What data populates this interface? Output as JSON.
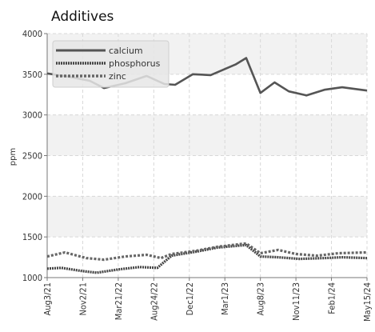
{
  "chart_data": {
    "type": "line",
    "title": "Additives",
    "ylabel": "ppm",
    "xlabel": "",
    "ylim": [
      1000,
      4000
    ],
    "yticks": [
      "1000",
      "1500",
      "2000",
      "2500",
      "3000",
      "3500",
      "4000"
    ],
    "xtick_labels": [
      "Aug3/21",
      "Nov2/21",
      "Mar21/22",
      "Aug24/22",
      "Dec1/22",
      "Mar1/23",
      "Aug8/23",
      "Nov11/23",
      "Feb1/24",
      "May15/24"
    ],
    "grid": true,
    "legend_position": "top-left",
    "series": [
      {
        "name": "calcium",
        "color": "#555555",
        "style": "solid",
        "points": [
          [
            0,
            3510
          ],
          [
            0.6,
            3470
          ],
          [
            1.2,
            3420
          ],
          [
            1.6,
            3330
          ],
          [
            2.2,
            3390
          ],
          [
            2.8,
            3480
          ],
          [
            3.3,
            3380
          ],
          [
            3.6,
            3370
          ],
          [
            4.1,
            3500
          ],
          [
            4.6,
            3490
          ],
          [
            5.3,
            3620
          ],
          [
            5.6,
            3700
          ],
          [
            6.0,
            3270
          ],
          [
            6.4,
            3400
          ],
          [
            6.8,
            3290
          ],
          [
            7.3,
            3240
          ],
          [
            7.8,
            3310
          ],
          [
            8.3,
            3340
          ],
          [
            9.0,
            3300
          ]
        ]
      },
      {
        "name": "phosphorus",
        "color": "#444444",
        "style": "dotted",
        "points": [
          [
            0,
            1110
          ],
          [
            0.4,
            1120
          ],
          [
            1.0,
            1080
          ],
          [
            1.4,
            1060
          ],
          [
            2.0,
            1100
          ],
          [
            2.6,
            1130
          ],
          [
            3.1,
            1120
          ],
          [
            3.5,
            1270
          ],
          [
            4.2,
            1320
          ],
          [
            4.8,
            1370
          ],
          [
            5.6,
            1400
          ],
          [
            6.0,
            1260
          ],
          [
            6.5,
            1250
          ],
          [
            7.1,
            1230
          ],
          [
            7.8,
            1240
          ],
          [
            8.3,
            1250
          ],
          [
            9.0,
            1240
          ]
        ]
      },
      {
        "name": "zinc",
        "color": "#666666",
        "style": "dashed",
        "points": [
          [
            0,
            1260
          ],
          [
            0.5,
            1310
          ],
          [
            1.1,
            1240
          ],
          [
            1.6,
            1220
          ],
          [
            2.2,
            1260
          ],
          [
            2.8,
            1280
          ],
          [
            3.2,
            1240
          ],
          [
            3.5,
            1290
          ],
          [
            4.2,
            1330
          ],
          [
            4.8,
            1380
          ],
          [
            5.6,
            1420
          ],
          [
            6.0,
            1300
          ],
          [
            6.5,
            1340
          ],
          [
            7.0,
            1290
          ],
          [
            7.6,
            1270
          ],
          [
            8.2,
            1300
          ],
          [
            9.0,
            1310
          ]
        ]
      }
    ]
  }
}
